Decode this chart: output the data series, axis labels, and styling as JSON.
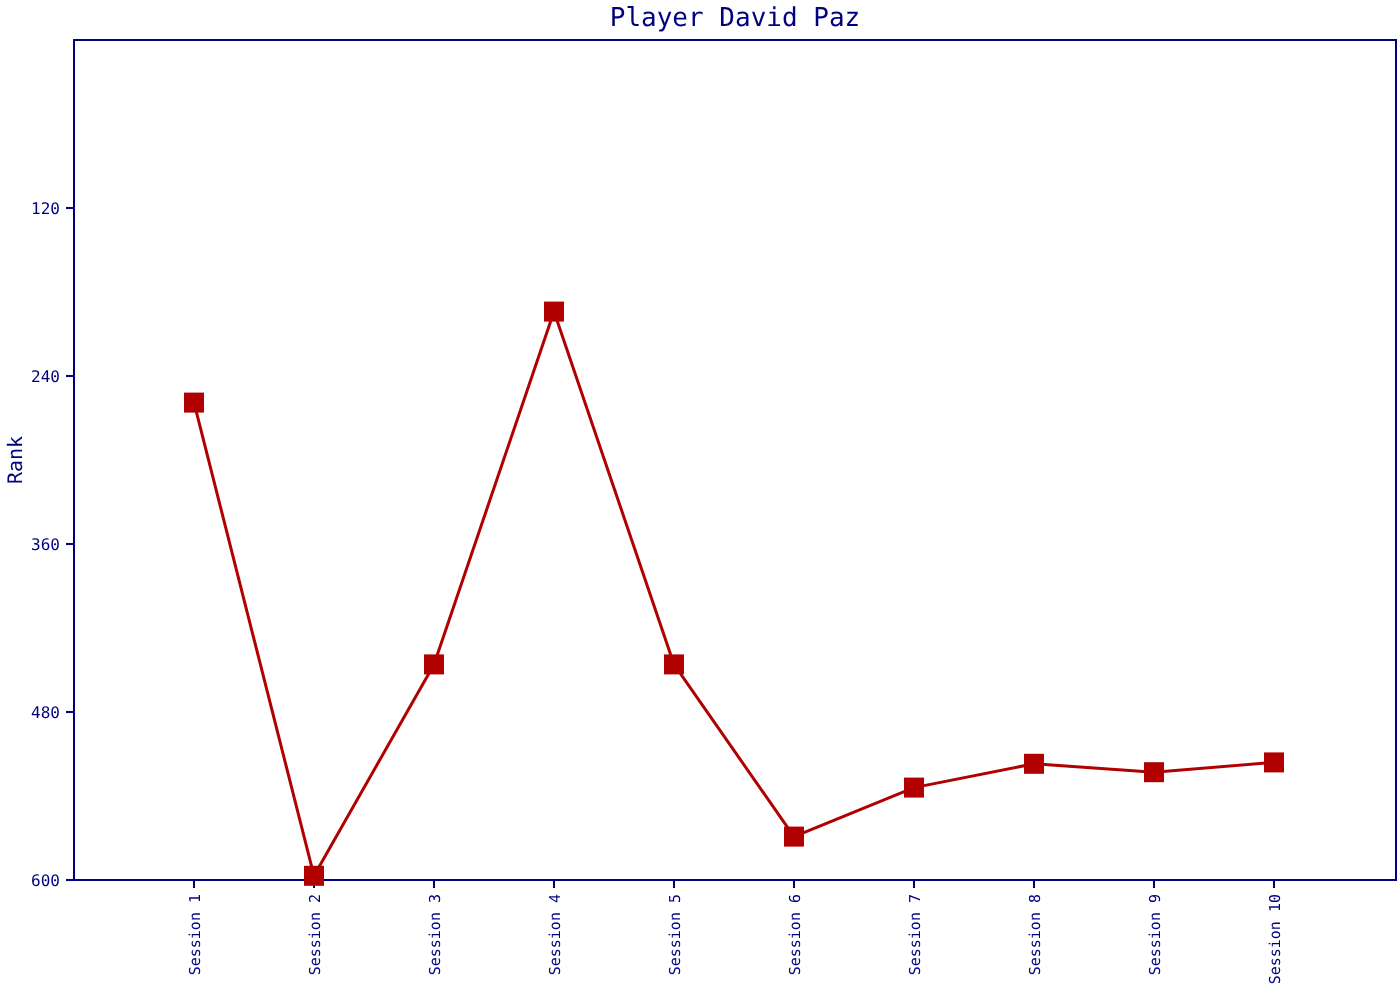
{
  "chart_data": {
    "type": "line",
    "title": "Player David Paz",
    "ylabel": "Rank",
    "categories": [
      "Session 1",
      "Session 2",
      "Session 3",
      "Session 4",
      "Session 5",
      "Session 6",
      "Session 7",
      "Session 8",
      "Session 9",
      "Session 10"
    ],
    "series": [
      {
        "color": "#b00000",
        "values": [
          259,
          597,
          446,
          194,
          446,
          569,
          534,
          517,
          523,
          516
        ]
      }
    ],
    "ylim": [
      600,
      0
    ],
    "yticks": [
      120,
      240,
      360,
      480,
      600
    ],
    "grid": false,
    "marker": "square",
    "line_style": "solid"
  }
}
